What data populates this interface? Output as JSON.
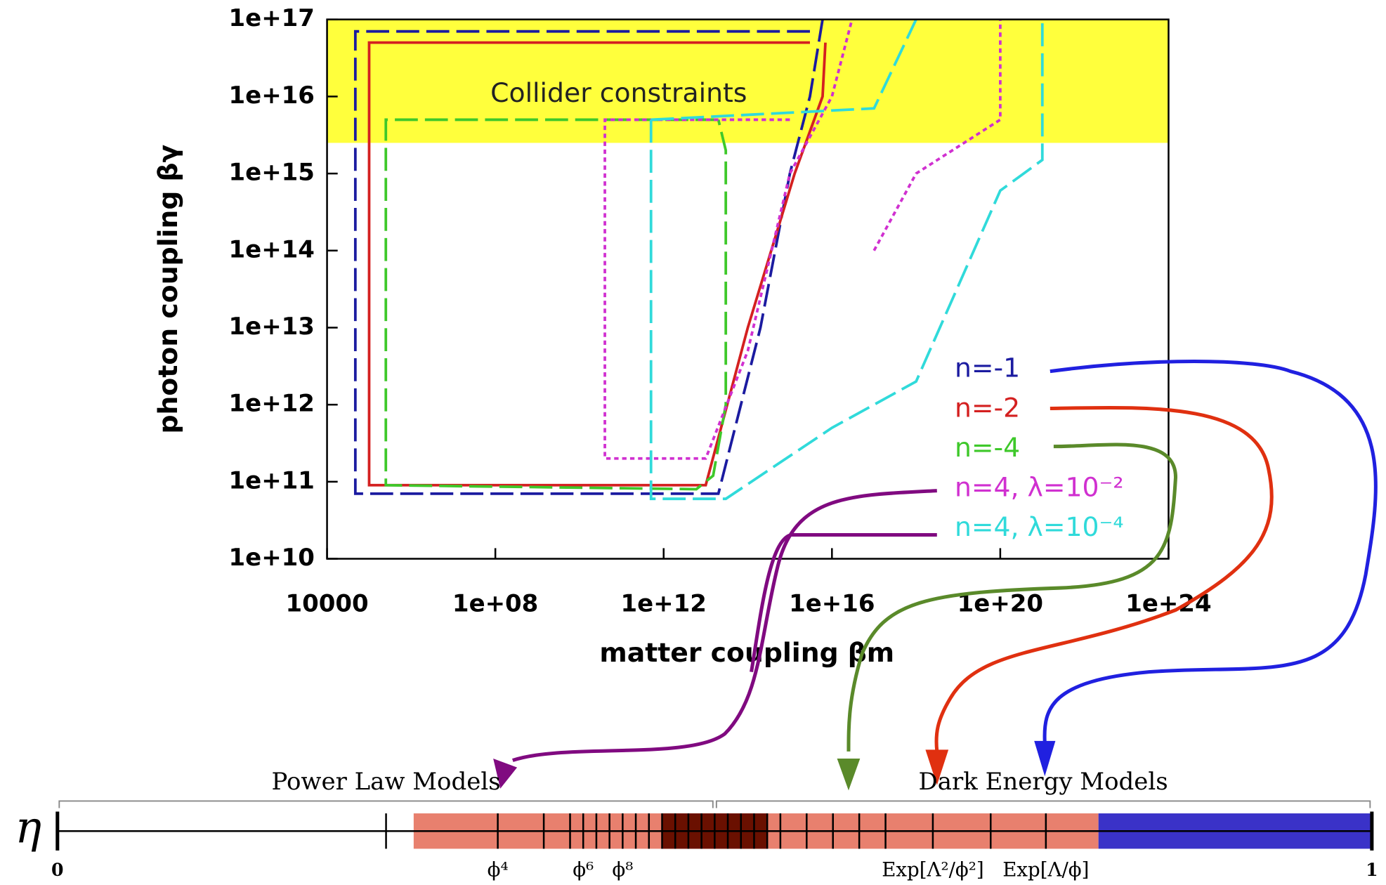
{
  "chart_data": [
    {
      "type": "line",
      "xlabel": "matter coupling βm",
      "ylabel": "photon coupling βγ",
      "xscale": "log",
      "yscale": "log",
      "xlim": [
        10000,
        1e+24
      ],
      "ylim": [
        10000000000.0,
        1e+17
      ],
      "xticks": [
        10000,
        {
          "value": 100000000.0,
          "label": "1e+08"
        },
        {
          "value": 1000000000000.0,
          "label": "1e+12"
        },
        {
          "value": 1e+16,
          "label": "1e+16"
        },
        {
          "value": 1e+20,
          "label": "1e+20"
        },
        {
          "value": 1e+24,
          "label": "1e+24"
        }
      ],
      "yticks": [
        {
          "value": 10000000000.0,
          "label": "1e+10"
        },
        {
          "value": 100000000000.0,
          "label": "1e+11"
        },
        {
          "value": 1000000000000.0,
          "label": "1e+12"
        },
        {
          "value": 10000000000000.0,
          "label": "1e+13"
        },
        {
          "value": 100000000000000.0,
          "label": "1e+14"
        },
        {
          "value": 1000000000000000.0,
          "label": "1e+15"
        },
        {
          "value": 1e+16,
          "label": "1e+16"
        },
        {
          "value": 1e+17,
          "label": "1e+17"
        }
      ],
      "region": {
        "label": "Collider constraints",
        "ylim": [
          2500000000000000.0,
          1e+17
        ],
        "color": "#ffff3c"
      },
      "series": [
        {
          "name": "n=-1",
          "color": "#1b1ba0",
          "dash": "dashed",
          "x": [
            3000000000000000.0,
            47000.0,
            47000.0,
            20000000000000.0,
            200000000000000.0,
            1000000000000000.0,
            3000000000000000.0,
            6000000000000000.0
          ],
          "y": [
            7e+16,
            7e+16,
            70000000000.0,
            70000000000.0,
            10000000000000.0,
            1000000000000000.0,
            1e+16,
            1e+17
          ]
        },
        {
          "name": "n=-2",
          "color": "#d42020",
          "dash": "solid",
          "x": [
            3000000000000000.0,
            100000.0,
            100000.0,
            10000000000000.0,
            100000000000000.0,
            1300000000000000.0,
            6000000000000000.0,
            7000000000000000.0
          ],
          "y": [
            5e+16,
            5e+16,
            90000000000.0,
            90000000000.0,
            10000000000000.0,
            1000000000000000.0,
            1e+16,
            5e+16
          ]
        },
        {
          "name": "n=-4",
          "color": "#3ec82a",
          "dash": "dashed",
          "x": [
            20000000000000.0,
            250000.0,
            250000.0,
            6000000000000.0,
            15000000000000.0,
            30000000000000.0,
            30000000000000.0,
            20000000000000.0
          ],
          "y": [
            5000000000000000.0,
            5000000000000000.0,
            90000000000.0,
            80000000000.0,
            120000000000.0,
            1000000000000.0,
            2000000000000000.0,
            5000000000000000.0
          ]
        },
        {
          "name": "n=4, λ=10⁻²",
          "color": "#d030d0",
          "dash": "dotted",
          "x": [
            1000000000000000.0,
            40000000000.0,
            40000000000.0,
            10000000000000.0,
            100000000000000.0,
            1000000000000000.0,
            1e+16,
            3e+16,
            null,
            1e+17,
            1e+18,
            1e+20,
            1e+20
          ],
          "y": [
            5000000000000000.0,
            5000000000000000.0,
            200000000000.0,
            200000000000.0,
            5000000000000.0,
            1000000000000000.0,
            1e+16,
            1e+17,
            null,
            100000000000000.0,
            1000000000000000.0,
            5000000000000000.0,
            1e+17
          ]
        },
        {
          "name": "n=4, λ=10⁻⁴",
          "color": "#30dada",
          "dash": "dashed",
          "x": [
            500000000000.0,
            500000000000.0,
            30000000000000.0,
            1e+16,
            1e+18,
            1e+20,
            1e+21,
            1e+21,
            null,
            500000000000.0,
            1e+17,
            1e+18
          ],
          "y": [
            5000000000000000.0,
            60000000000.0,
            60000000000.0,
            500000000000.0,
            2000000000000.0,
            600000000000000.0,
            1500000000000000.0,
            1e+17,
            null,
            5000000000000000.0,
            7000000000000000.0,
            1e+17
          ]
        }
      ]
    },
    {
      "type": "range",
      "ylabel": "η",
      "xlim": [
        0,
        1
      ],
      "xticks": [
        0,
        1
      ],
      "groups": [
        {
          "label": "Power Law Models",
          "range": [
            0,
            0.5
          ]
        },
        {
          "label": "Dark Energy Models",
          "range": [
            0.5,
            1
          ]
        }
      ],
      "bands": [
        {
          "range": [
            0.271,
            0.792
          ],
          "color": "#e8806e"
        },
        {
          "range": [
            0.792,
            1
          ],
          "color": "#3a32c8"
        }
      ],
      "marks": [
        {
          "value": 0.335,
          "label": "ϕ⁴"
        },
        {
          "value": 0.4,
          "label": "ϕ⁶"
        },
        {
          "value": 0.43,
          "label": "ϕ⁸"
        },
        {
          "value": 0.666,
          "label": "Exp[Λ²/ϕ²]"
        },
        {
          "value": 0.752,
          "label": "Exp[Λ/ϕ]"
        }
      ],
      "minor_ticks": [
        0.25,
        0.37,
        0.39,
        0.41,
        0.42,
        0.44,
        0.45,
        0.46,
        0.47,
        0.48,
        0.49,
        0.5,
        0.51,
        0.52,
        0.53,
        0.54,
        0.55,
        0.57,
        0.59,
        0.61,
        0.63,
        0.71
      ]
    }
  ]
}
